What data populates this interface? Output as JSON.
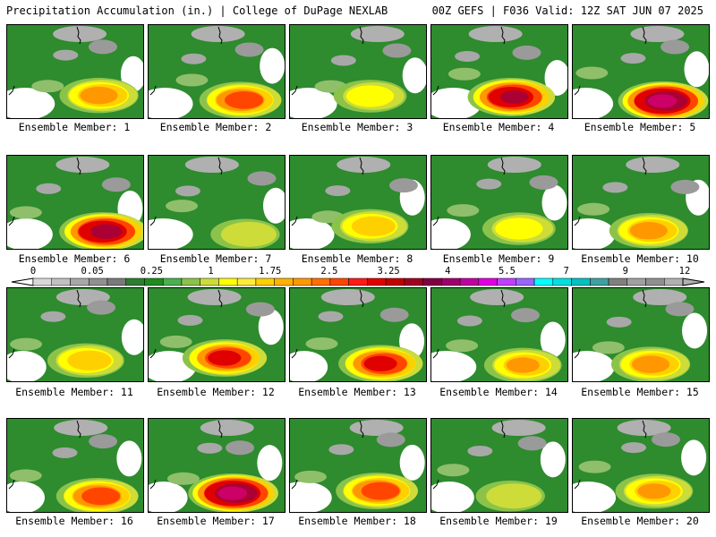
{
  "header": {
    "left": "Precipitation Accumulation (in.) | College of DuPage NEXLAB",
    "right": "00Z GEFS | F036 Valid: 12Z SAT JUN 07 2025"
  },
  "caption_prefix": "Ensemble Member: ",
  "members": [
    {
      "label": "Ensemble Member: 1",
      "number": 1,
      "max_in": 2.2
    },
    {
      "label": "Ensemble Member: 2",
      "number": 2,
      "max_in": 2.8
    },
    {
      "label": "Ensemble Member: 3",
      "number": 3,
      "max_in": 1.5
    },
    {
      "label": "Ensemble Member: 4",
      "number": 4,
      "max_in": 4.2
    },
    {
      "label": "Ensemble Member: 5",
      "number": 5,
      "max_in": 5.5
    },
    {
      "label": "Ensemble Member: 6",
      "number": 6,
      "max_in": 4.5
    },
    {
      "label": "Ensemble Member: 7",
      "number": 7,
      "max_in": 1.2
    },
    {
      "label": "Ensemble Member: 8",
      "number": 8,
      "max_in": 1.9
    },
    {
      "label": "Ensemble Member: 9",
      "number": 9,
      "max_in": 1.5
    },
    {
      "label": "Ensemble Member: 10",
      "number": 10,
      "max_in": 2.2
    },
    {
      "label": "Ensemble Member: 11",
      "number": 11,
      "max_in": 1.9
    },
    {
      "label": "Ensemble Member: 12",
      "number": 12,
      "max_in": 3.3
    },
    {
      "label": "Ensemble Member: 13",
      "number": 13,
      "max_in": 3.3
    },
    {
      "label": "Ensemble Member: 14",
      "number": 14,
      "max_in": 2.0
    },
    {
      "label": "Ensemble Member: 15",
      "number": 15,
      "max_in": 2.2
    },
    {
      "label": "Ensemble Member: 16",
      "number": 16,
      "max_in": 2.8
    },
    {
      "label": "Ensemble Member: 17",
      "number": 17,
      "max_in": 5.5
    },
    {
      "label": "Ensemble Member: 18",
      "number": 18,
      "max_in": 2.8
    },
    {
      "label": "Ensemble Member: 19",
      "number": 19,
      "max_in": 1.2
    },
    {
      "label": "Ensemble Member: 20",
      "number": 20,
      "max_in": 2.0
    }
  ],
  "colorbar": {
    "labels": [
      "0",
      "0.05",
      "0.25",
      "1",
      "1.75",
      "2.5",
      "3.25",
      "4",
      "5.5",
      "7",
      "9",
      "12"
    ],
    "colors": [
      "#d8d8d8",
      "#c0c0c0",
      "#a8a8a8",
      "#909090",
      "#7a7a7a",
      "#2e7d32",
      "#1e8c1e",
      "#4caf50",
      "#8bc34a",
      "#cddc39",
      "#ffff00",
      "#ffeb3b",
      "#ffd000",
      "#ffb300",
      "#ff9800",
      "#ff7000",
      "#ff4500",
      "#ff1a1a",
      "#e00000",
      "#c00000",
      "#a00020",
      "#800040",
      "#a0006a",
      "#c000a0",
      "#e000e0",
      "#c040ff",
      "#9966ff",
      "#00ffff",
      "#00e0e0",
      "#00c0c0",
      "#40a0a0",
      "#808080",
      "#a0a0a0",
      "#909090",
      "#b0b0b0"
    ]
  }
}
